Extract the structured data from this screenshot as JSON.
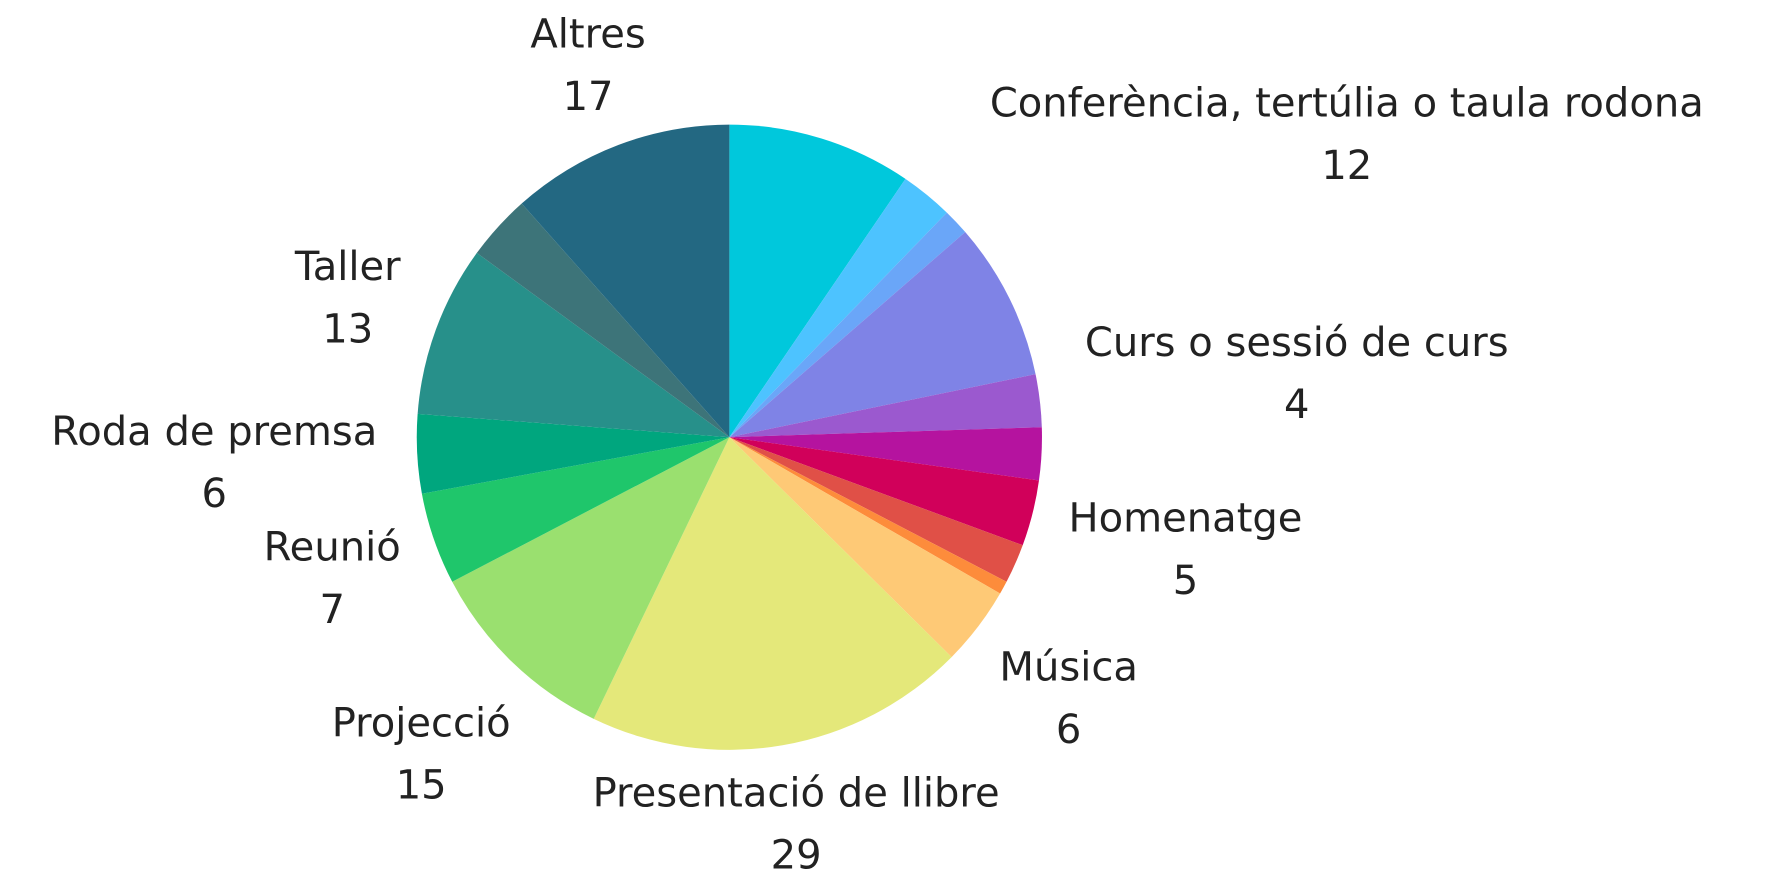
{
  "chart_data": {
    "type": "pie",
    "categories": [
      null,
      null,
      null,
      "Conferència, tertúlia o taula rodona",
      "Curs o sessió de curs",
      null,
      "Homenatge",
      null,
      null,
      "Música",
      "Presentació de llibre",
      "Projecció",
      "Reunió",
      "Roda de premsa",
      "Taller",
      null,
      "Altres"
    ],
    "values": [
      14,
      4,
      2,
      12,
      4,
      4,
      5,
      3,
      1,
      6,
      29,
      15,
      7,
      6,
      13,
      5,
      17
    ],
    "colors": [
      "#00c8dc",
      "#4dc3ff",
      "#6aa6f8",
      "#7f83e6",
      "#9b59cf",
      "#b5139f",
      "#d1005a",
      "#e05047",
      "#fd8c3b",
      "#fec976",
      "#e4e87a",
      "#9ae06f",
      "#1fc66b",
      "#00a67e",
      "#27908a",
      "#3d7479",
      "#236882"
    ]
  }
}
